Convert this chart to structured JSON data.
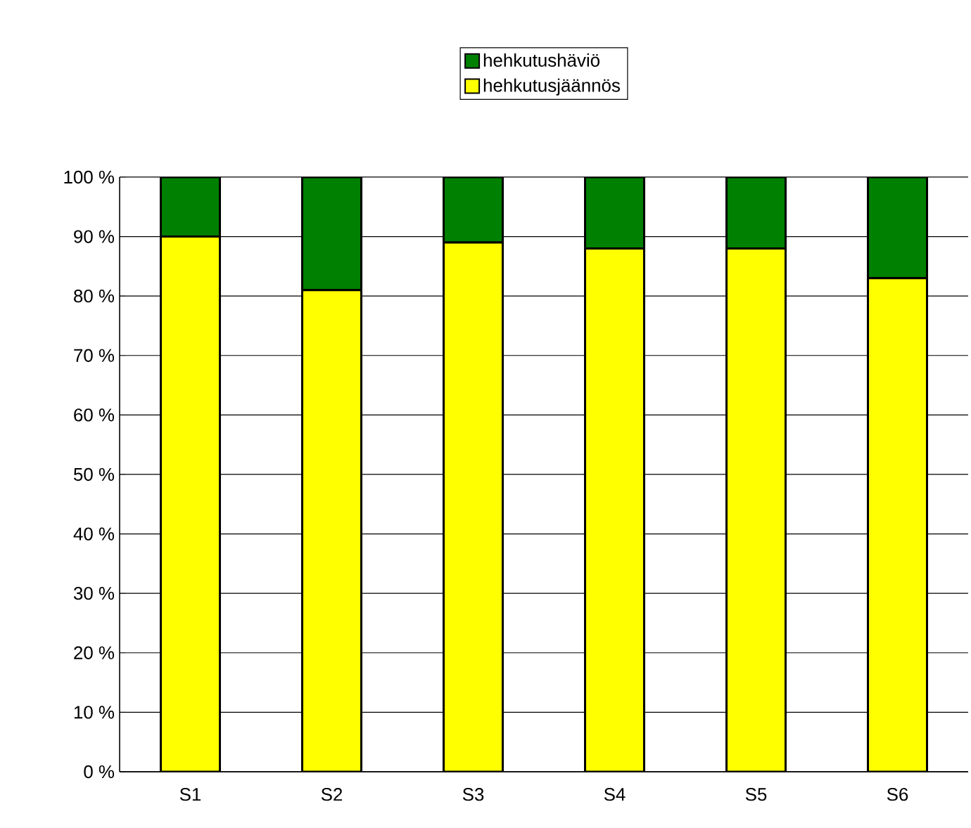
{
  "chart_data": {
    "type": "bar",
    "stacked": true,
    "categories": [
      "S1",
      "S2",
      "S3",
      "S4",
      "S5",
      "S6"
    ],
    "series": [
      {
        "name": "hehkutusjäännös",
        "color": "#ffff00",
        "values": [
          90,
          81,
          89,
          88,
          88,
          83
        ]
      },
      {
        "name": "hehkutushäviö",
        "color": "#008000",
        "values": [
          10,
          19,
          11,
          12,
          12,
          17
        ]
      }
    ],
    "ylim": [
      0,
      100
    ],
    "yticks": [
      {
        "value": 0,
        "label": "0 %"
      },
      {
        "value": 10,
        "label": "10 %"
      },
      {
        "value": 20,
        "label": "20 %"
      },
      {
        "value": 30,
        "label": "30 %"
      },
      {
        "value": 40,
        "label": "40 %"
      },
      {
        "value": 50,
        "label": "50 %"
      },
      {
        "value": 60,
        "label": "60 %"
      },
      {
        "value": 70,
        "label": "70 %"
      },
      {
        "value": 80,
        "label": "80 %"
      },
      {
        "value": 90,
        "label": "90 %"
      },
      {
        "value": 100,
        "label": "100 %"
      }
    ],
    "grid": "y",
    "legend": "top"
  }
}
